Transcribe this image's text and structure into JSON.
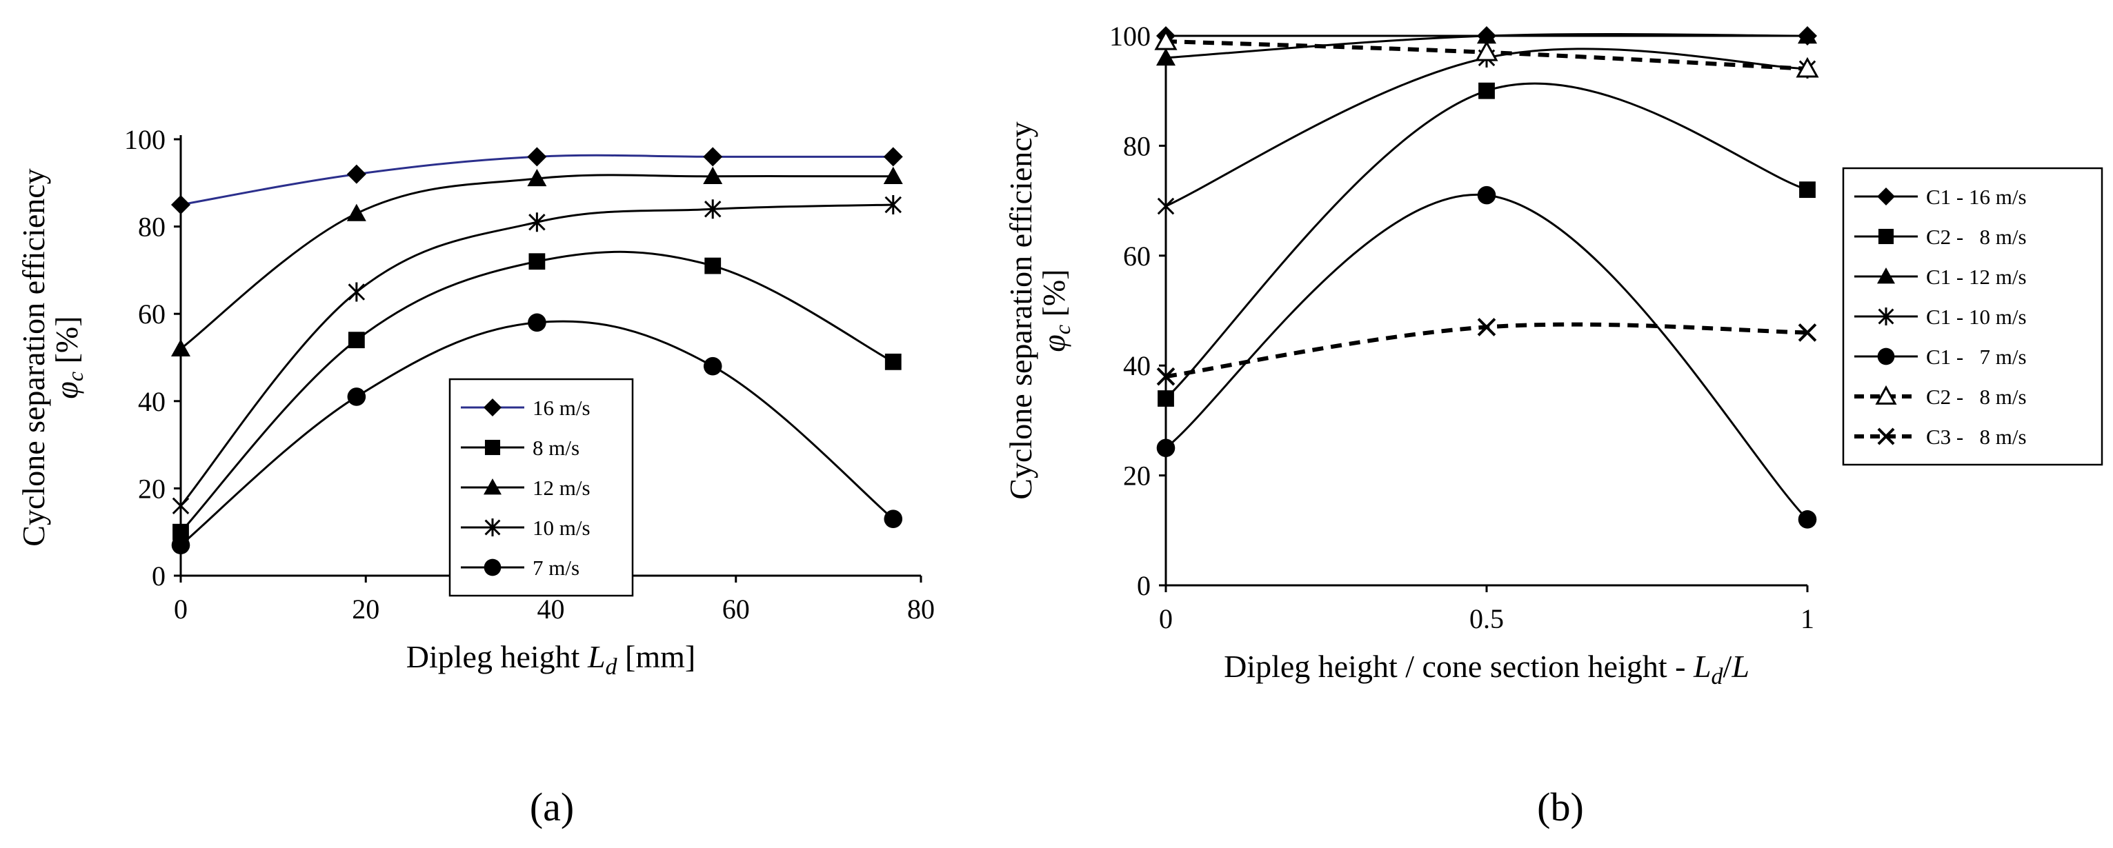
{
  "figure": {
    "panel_a_label": "(a)",
    "panel_b_label": "(b)"
  },
  "chart_data": [
    {
      "panel": "a",
      "type": "line",
      "xlabel": "Dipleg height L_d [mm]",
      "xlabel_main": "Dipleg height ",
      "xlabel_sym": "L",
      "xlabel_sub": "d",
      "xlabel_unit": " [mm]",
      "ylabel_line1": "Cyclone separation efficiency",
      "ylabel_sym": "φ",
      "ylabel_sub": "c",
      "ylabel_unit": " [%]",
      "xlim": [
        0,
        80
      ],
      "ylim": [
        0,
        100
      ],
      "xticks": [
        0,
        20,
        40,
        60,
        80
      ],
      "xtick_labels": [
        "0",
        "20",
        "40",
        "60",
        "80"
      ],
      "yticks": [
        0,
        20,
        40,
        60,
        80,
        100
      ],
      "ytick_labels": [
        "0",
        "20",
        "40",
        "60",
        "80",
        "100"
      ],
      "grid": false,
      "legend_position": "center-right",
      "series": [
        {
          "name": "16 m/s",
          "marker": "diamond",
          "color": "#2b2f8c",
          "dashed": false,
          "x": [
            0,
            19,
            38.5,
            57.5,
            77
          ],
          "y": [
            85,
            92,
            96,
            96,
            96
          ]
        },
        {
          "name": "8 m/s",
          "marker": "square",
          "color": "#000000",
          "dashed": false,
          "x": [
            0,
            19,
            38.5,
            57.5,
            77
          ],
          "y": [
            10,
            54,
            72,
            71,
            49
          ]
        },
        {
          "name": "12 m/s",
          "marker": "triangle",
          "color": "#000000",
          "dashed": false,
          "x": [
            0,
            19,
            38.5,
            57.5,
            77
          ],
          "y": [
            52,
            83,
            91,
            91.5,
            91.5
          ]
        },
        {
          "name": "10 m/s",
          "marker": "star",
          "color": "#000000",
          "dashed": false,
          "x": [
            0,
            19,
            38.5,
            57.5,
            77
          ],
          "y": [
            16,
            65,
            81,
            84,
            85
          ]
        },
        {
          "name": "7 m/s",
          "marker": "circle",
          "color": "#000000",
          "dashed": false,
          "x": [
            0,
            19,
            38.5,
            57.5,
            77
          ],
          "y": [
            7,
            41,
            58,
            48,
            13
          ]
        }
      ]
    },
    {
      "panel": "b",
      "type": "line",
      "xlabel": "Dipleg height / cone section height - L_d/L",
      "xlabel_main": "Dipleg height / cone section height - ",
      "xlabel_sym": "L",
      "xlabel_sub": "d",
      "xlabel_tail": "/",
      "xlabel_sym2": "L",
      "ylabel_line1": "Cyclone separation efficiency",
      "ylabel_sym": "φ",
      "ylabel_sub": "c",
      "ylabel_unit": " [%]",
      "xlim": [
        0,
        1
      ],
      "ylim": [
        0,
        100
      ],
      "xticks": [
        0,
        0.5,
        1
      ],
      "xtick_labels": [
        "0",
        "0.5",
        "1"
      ],
      "yticks": [
        0,
        20,
        40,
        60,
        80,
        100
      ],
      "ytick_labels": [
        "0",
        "20",
        "40",
        "60",
        "80",
        "100"
      ],
      "grid": false,
      "legend_position": "outside-right",
      "series": [
        {
          "name": "C1 - 16 m/s",
          "marker": "diamond",
          "color": "#000000",
          "dashed": false,
          "x": [
            0,
            0.5,
            1
          ],
          "y": [
            100,
            100,
            100
          ]
        },
        {
          "name": "C2 -   8 m/s",
          "marker": "square",
          "color": "#000000",
          "dashed": false,
          "x": [
            0,
            0.5,
            1
          ],
          "y": [
            34,
            90,
            72
          ]
        },
        {
          "name": "C1 - 12 m/s",
          "marker": "triangle",
          "color": "#000000",
          "dashed": false,
          "x": [
            0,
            0.5,
            1
          ],
          "y": [
            96,
            100,
            100
          ]
        },
        {
          "name": "C1 - 10 m/s",
          "marker": "star",
          "color": "#000000",
          "dashed": false,
          "x": [
            0,
            0.5,
            1
          ],
          "y": [
            69,
            96,
            94
          ]
        },
        {
          "name": "C1 -   7 m/s",
          "marker": "circle",
          "color": "#000000",
          "dashed": false,
          "x": [
            0,
            0.5,
            1
          ],
          "y": [
            25,
            71,
            12
          ]
        },
        {
          "name": "C2 -   8 m/s",
          "marker": "open-triangle",
          "color": "#000000",
          "dashed": true,
          "x": [
            0,
            0.5,
            1
          ],
          "y": [
            99,
            97,
            94
          ]
        },
        {
          "name": "C3 -   8 m/s",
          "marker": "x",
          "color": "#000000",
          "dashed": true,
          "x": [
            0,
            0.5,
            1
          ],
          "y": [
            38,
            47,
            46
          ]
        }
      ]
    }
  ]
}
